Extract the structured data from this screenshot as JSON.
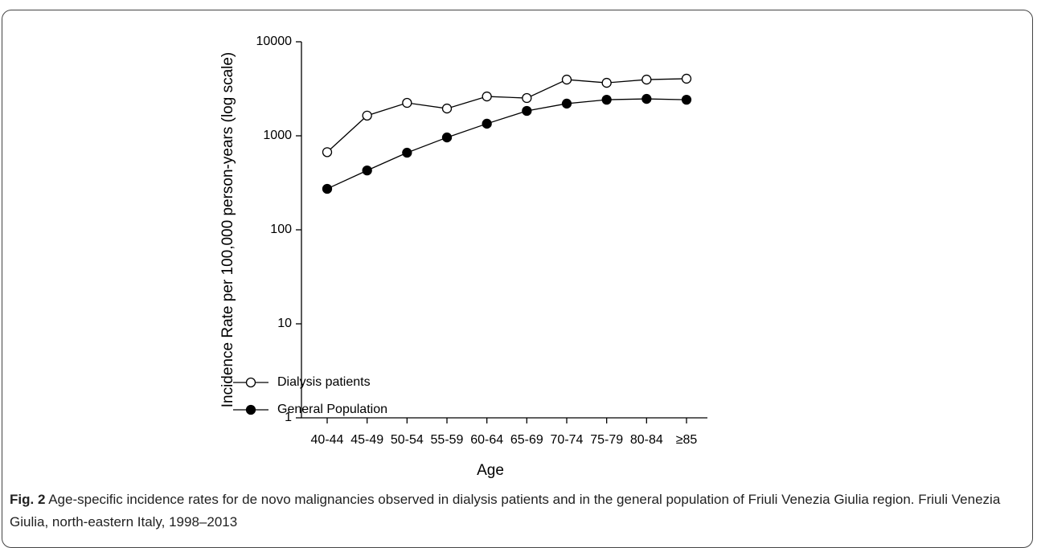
{
  "chart_data": {
    "type": "line",
    "log_scale": true,
    "x_label": "Age",
    "y_label": "Incidence Rate per 100,000 person-years (log scale)",
    "categories": [
      "40-44",
      "45-49",
      "50-54",
      "55-59",
      "60-64",
      "65-69",
      "70-74",
      "75-79",
      "80-84",
      "≥85"
    ],
    "series": [
      {
        "name": "Dialysis patients",
        "color": "#000000",
        "marker": "open",
        "values": [
          670,
          1640,
          2240,
          1950,
          2620,
          2520,
          3960,
          3660,
          3960,
          4050
        ]
      },
      {
        "name": "General Population",
        "color": "#000000",
        "marker": "filled",
        "values": [
          273,
          428,
          661,
          960,
          1345,
          1840,
          2200,
          2420,
          2470,
          2420
        ]
      }
    ],
    "ylim": [
      1,
      10000
    ],
    "yticks": [
      1,
      10,
      100,
      1000,
      10000
    ],
    "legend": "lower left"
  },
  "caption": {
    "label": "Fig. 2",
    "text": "Age-specific incidence rates for de novo malignancies observed in dialysis patients and in the general population of Friuli Venezia Giulia region. Friuli Venezia Giulia, north-eastern Italy, 1998–2013"
  }
}
